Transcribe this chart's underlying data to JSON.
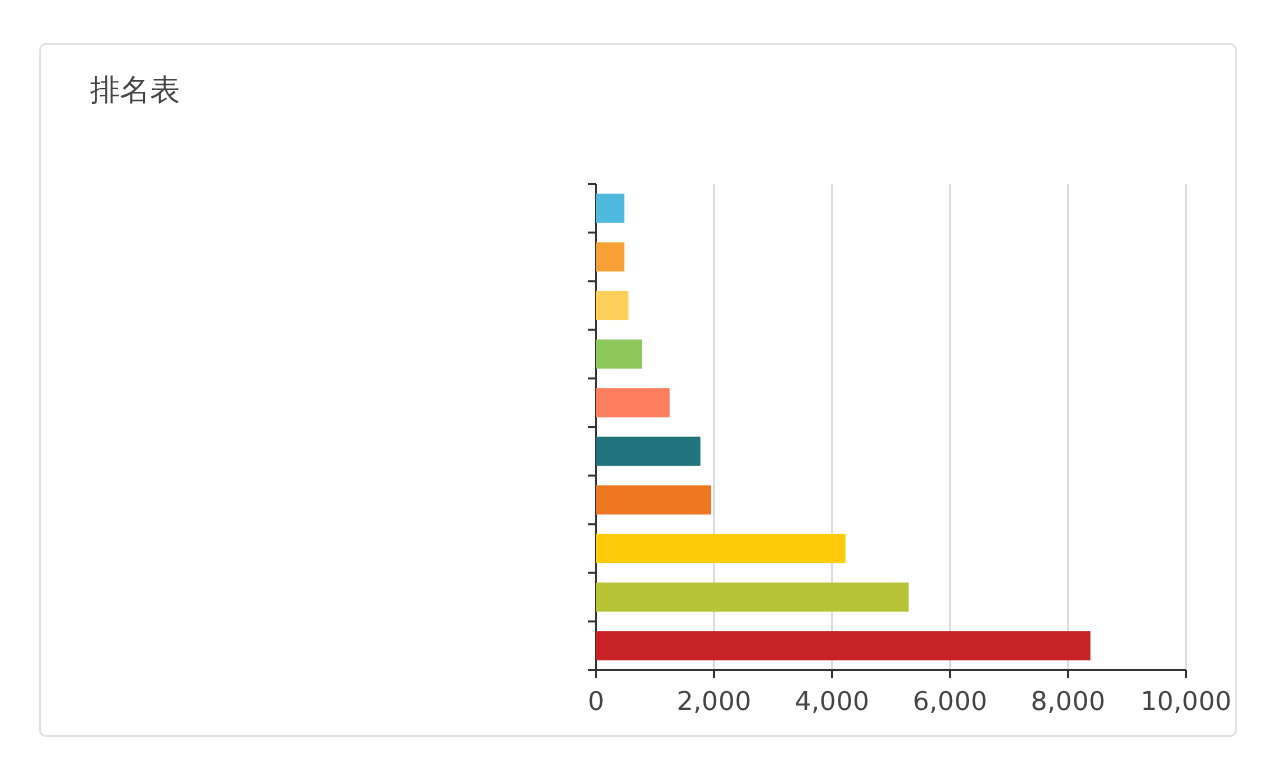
{
  "chart_data": {
    "type": "bar",
    "title": "排名表",
    "orientation": "horizontal",
    "categories": [
      null,
      null,
      null,
      null,
      null,
      null,
      null,
      null,
      null,
      null
    ],
    "values": [
      480,
      480,
      550,
      780,
      1250,
      1770,
      1950,
      4230,
      5300,
      8380
    ],
    "colors": [
      "#4fb9de",
      "#f7a035",
      "#fdd05a",
      "#8fc85a",
      "#fd7f60",
      "#21737e",
      "#ee7722",
      "#fecc0a",
      "#b6c334",
      "#c82126"
    ],
    "xlim": [
      0,
      10000
    ],
    "xticks": [
      {
        "value": 0,
        "label": "0"
      },
      {
        "value": 2000,
        "label": "2,000"
      },
      {
        "value": 4000,
        "label": "4,000"
      },
      {
        "value": 6000,
        "label": "6,000"
      },
      {
        "value": 8000,
        "label": "8,000"
      },
      {
        "value": 10000,
        "label": "10,000"
      }
    ],
    "grid": "x"
  }
}
